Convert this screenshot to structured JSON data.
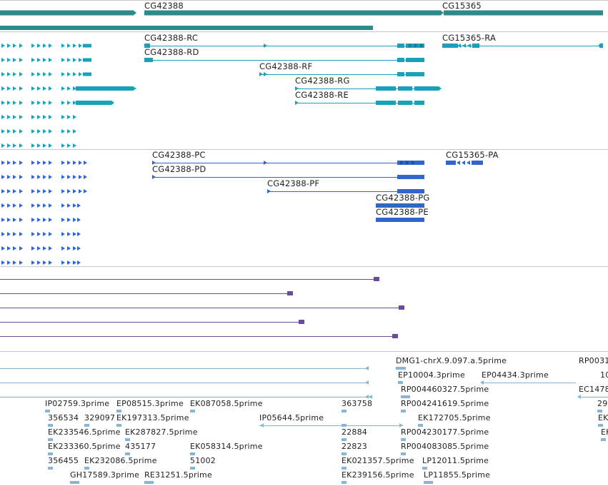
{
  "colors": {
    "gene": "#2e8b8b",
    "transcript": "#1aa0b8",
    "protein": "#3366cc",
    "other": "#6a4c9c",
    "est": "#86b6d6",
    "separator": "#c8c8c8"
  },
  "gene_track": {
    "genes": [
      {
        "label": "CG42388"
      },
      {
        "label": "CG15365"
      }
    ]
  },
  "transcript_track": {
    "labels": [
      "CG42388-RC",
      "CG42388-RD",
      "CG42388-RF",
      "CG42388-RG",
      "CG42388-RE",
      "CG15365-RA"
    ]
  },
  "protein_track": {
    "labels": [
      "CG42388-PC",
      "CG42388-PD",
      "CG42388-PF",
      "CG42388-PG",
      "CG42388-PE",
      "CG15365-PA"
    ]
  },
  "est_track": {
    "labels": [
      "DMG1-chrX.9.097.a.5prime",
      "RP0031",
      "EP10004.3prime",
      "EP04434.3prime",
      "10",
      "RP004460327.5prime",
      "EC1478",
      "IP02759.3prime",
      "EP08515.3prime",
      "EK087058.5prime",
      "363758",
      "RP004241619.5prime",
      "29",
      "356534",
      "329097",
      "EK197313.5prime",
      "IP05644.5prime",
      "EK172705.5prime",
      "EK",
      "EK233546.5prime",
      "EK287827.5prime",
      "22884",
      "RP004230177.5prime",
      "EK",
      "EK233360.5prime",
      "435177",
      "EK058314.5prime",
      "22823",
      "RP004083085.5prime",
      "356455",
      "EK232086.5prime",
      "51002",
      "EK021357.5prime",
      "LP12011.5prime",
      "GH17589.3prime",
      "RE31251.5prime",
      "EK239156.5prime",
      "LP11855.5prime"
    ]
  }
}
